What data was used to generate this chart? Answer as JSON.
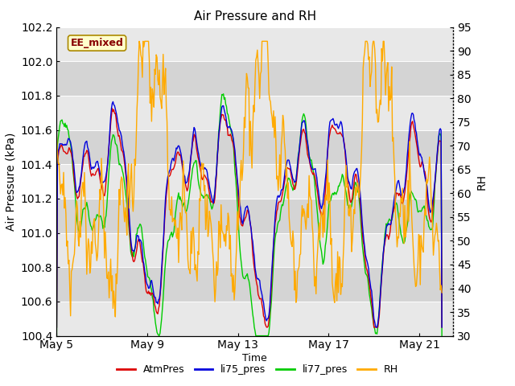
{
  "title": "Air Pressure and RH",
  "xlabel": "Time",
  "ylabel_left": "Air Pressure (kPa)",
  "ylabel_right": "RH",
  "annotation": "EE_mixed",
  "ylim_left": [
    100.4,
    102.2
  ],
  "ylim_right": [
    30,
    95
  ],
  "yticks_left": [
    100.4,
    100.6,
    100.8,
    101.0,
    101.2,
    101.4,
    101.6,
    101.8,
    102.0,
    102.2
  ],
  "yticks_right": [
    30,
    35,
    40,
    45,
    50,
    55,
    60,
    65,
    70,
    75,
    80,
    85,
    90,
    95
  ],
  "xtick_positions": [
    0,
    4,
    8,
    12,
    16
  ],
  "xtick_labels": [
    "May 5",
    "May 9",
    "May 13",
    "May 17",
    "May 21"
  ],
  "colors": {
    "AtmPres": "#dd0000",
    "li75_pres": "#0000dd",
    "li77_pres": "#00cc00",
    "RH": "#ffaa00"
  },
  "band_light": "#e8e8e8",
  "band_dark": "#d4d4d4",
  "linewidth": 1.0,
  "n_points": 500,
  "seed": 42,
  "figsize": [
    6.4,
    4.8
  ],
  "dpi": 100
}
